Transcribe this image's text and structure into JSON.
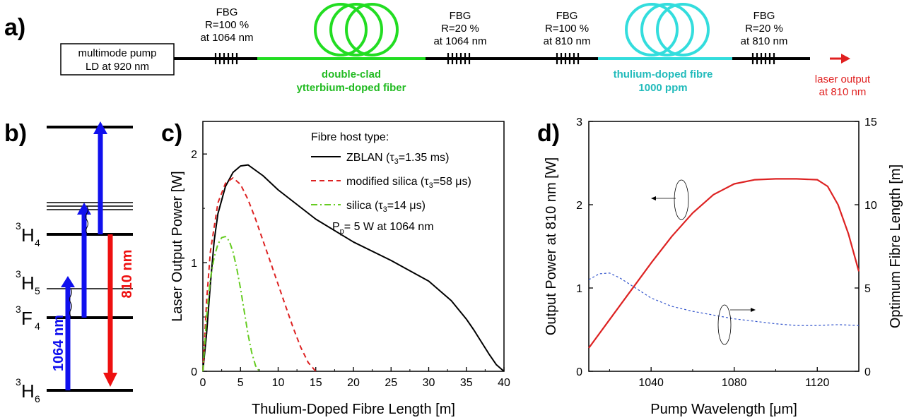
{
  "panel_labels": {
    "a": "a)",
    "b": "b)",
    "c": "c)",
    "d": "d)"
  },
  "setup": {
    "pump_box": {
      "line1": "multimode pump",
      "line2": "LD at 920 nm"
    },
    "fbg1": {
      "line1": "FBG",
      "line2": "R=100 %",
      "line3": "at 1064 nm"
    },
    "fbg2": {
      "line1": "FBG",
      "line2": "R=20 %",
      "line3": "at 1064 nm"
    },
    "fbg3": {
      "line1": "FBG",
      "line2": "R=100 %",
      "line3": "at 810 nm"
    },
    "fbg4": {
      "line1": "FBG",
      "line2": "R=20 %",
      "line3": "at 810 nm"
    },
    "yb_fibre": {
      "line1": "double-clad",
      "line2": "ytterbium-doped fiber"
    },
    "tm_fibre": {
      "line1": "thulium-doped fibre",
      "line2": "1000 ppm"
    },
    "output": {
      "line1": "laser output",
      "line2": "at 810 nm"
    },
    "colors": {
      "yb": "#22dd22",
      "tm": "#33dddd",
      "output": "#e02020",
      "yb_text": "#22bb22",
      "tm_text": "#22bbbb"
    }
  },
  "energy": {
    "levels": [
      {
        "sup": "3",
        "main": "H",
        "sub": "6"
      },
      {
        "sup": "3",
        "main": "F",
        "sub": "4"
      },
      {
        "sup": "3",
        "main": "H",
        "sub": "5"
      },
      {
        "sup": "3",
        "main": "H",
        "sub": "4"
      }
    ],
    "pump_label": "1064 nm",
    "laser_label": "810 nm",
    "colors": {
      "pump": "#1010ee",
      "laser": "#ee1010"
    }
  },
  "chart_data": [
    {
      "type": "line",
      "xlabel": "Thulium-Doped Fibre Length [m]",
      "ylabel": "Laser Output Power [W]",
      "xlim": [
        0,
        40
      ],
      "ylim": [
        0,
        2.3
      ],
      "xticks": [
        "0",
        "5",
        "10",
        "15",
        "20",
        "25",
        "30",
        "35",
        "40"
      ],
      "yticks": [
        "0",
        "1",
        "2"
      ],
      "legend_title": "Fibre host type:",
      "annotation": {
        "main": "P",
        "sub": "p",
        "rest": "= 5 W at 1064 nm"
      },
      "series": [
        {
          "name": "ZBLAN",
          "tau_label": "=1.35 ms",
          "color": "#000000",
          "dash": "",
          "x": [
            0,
            0.5,
            1,
            1.5,
            2,
            3,
            4,
            5,
            6,
            8,
            10,
            15,
            20,
            25,
            30,
            33,
            35,
            36,
            37,
            38,
            39,
            40
          ],
          "y": [
            0,
            0.35,
            0.8,
            1.2,
            1.45,
            1.7,
            1.83,
            1.89,
            1.9,
            1.8,
            1.67,
            1.4,
            1.19,
            1.02,
            0.83,
            0.65,
            0.48,
            0.38,
            0.27,
            0.16,
            0.06,
            0
          ]
        },
        {
          "name": "modified silica",
          "tau_label": "=58 μs",
          "color": "#dd2222",
          "dash": "7,5",
          "x": [
            0,
            0.5,
            1,
            2,
            3,
            4,
            5,
            6,
            7,
            8,
            9,
            10,
            11,
            12,
            13,
            14,
            15
          ],
          "y": [
            0,
            0.65,
            1.1,
            1.55,
            1.73,
            1.78,
            1.72,
            1.58,
            1.4,
            1.2,
            1.0,
            0.8,
            0.6,
            0.4,
            0.22,
            0.08,
            0
          ]
        },
        {
          "name": "silica",
          "tau_label": "=14 μs",
          "color": "#66cc22",
          "dash": "9,4,2,4",
          "x": [
            0,
            0.5,
            1,
            1.5,
            2,
            2.5,
            3,
            3.5,
            4,
            4.5,
            5,
            5.5,
            6,
            6.5,
            7,
            7.5
          ],
          "y": [
            0,
            0.5,
            0.85,
            1.05,
            1.17,
            1.23,
            1.24,
            1.2,
            1.1,
            0.95,
            0.76,
            0.55,
            0.34,
            0.17,
            0.05,
            0
          ]
        }
      ]
    },
    {
      "type": "line",
      "xlabel": "Pump Wavelength [μm]",
      "ylabel": "Output Power at 810 nm [W]",
      "y2label": "Optimum Fibre Length [m]",
      "xlim": [
        1010,
        1140
      ],
      "ylim": [
        0,
        3
      ],
      "y2lim": [
        0,
        15
      ],
      "xticks": [
        "1040",
        "1080",
        "1120"
      ],
      "yticks": [
        "0",
        "1",
        "2",
        "3"
      ],
      "y2ticks": [
        "0",
        "5",
        "10",
        "15"
      ],
      "series": [
        {
          "axis": "left",
          "color": "#dd2222",
          "dash": "",
          "x": [
            1010,
            1020,
            1030,
            1040,
            1050,
            1060,
            1070,
            1080,
            1090,
            1100,
            1110,
            1120,
            1125,
            1130,
            1135,
            1140
          ],
          "y": [
            0.28,
            0.62,
            0.96,
            1.3,
            1.62,
            1.9,
            2.12,
            2.25,
            2.3,
            2.31,
            2.31,
            2.3,
            2.22,
            2.0,
            1.65,
            1.2
          ]
        },
        {
          "axis": "right",
          "color": "#3355cc",
          "dash": "3,3",
          "x": [
            1010,
            1015,
            1020,
            1025,
            1030,
            1035,
            1040,
            1050,
            1060,
            1080,
            1100,
            1110,
            1120,
            1130,
            1140
          ],
          "y": [
            5.5,
            5.85,
            5.9,
            5.6,
            5.2,
            4.8,
            4.4,
            3.9,
            3.6,
            3.15,
            2.85,
            2.75,
            2.75,
            2.8,
            2.75
          ]
        }
      ]
    }
  ]
}
